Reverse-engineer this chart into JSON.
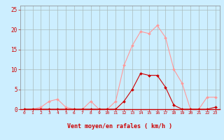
{
  "x": [
    0,
    1,
    2,
    3,
    4,
    5,
    6,
    7,
    8,
    9,
    10,
    11,
    12,
    13,
    14,
    15,
    16,
    17,
    18,
    19,
    20,
    21,
    22,
    23
  ],
  "pink_line": [
    0.0,
    0.0,
    0.5,
    2.0,
    2.5,
    0.5,
    0.0,
    0.0,
    2.0,
    0.0,
    0.0,
    2.0,
    11.0,
    16.0,
    19.5,
    19.0,
    21.0,
    18.0,
    10.0,
    6.5,
    0.0,
    0.0,
    3.0,
    3.0
  ],
  "red_line": [
    0.0,
    0.0,
    0.0,
    0.0,
    0.0,
    0.0,
    0.0,
    0.0,
    0.0,
    0.0,
    0.0,
    0.0,
    2.0,
    5.0,
    9.0,
    8.5,
    8.5,
    5.5,
    1.0,
    0.0,
    0.0,
    0.0,
    0.0,
    0.5
  ],
  "xlabel": "Vent moyen/en rafales ( km/h )",
  "ylim": [
    0,
    26
  ],
  "xlim": [
    -0.5,
    23.5
  ],
  "yticks": [
    0,
    5,
    10,
    15,
    20,
    25
  ],
  "xticks": [
    0,
    1,
    2,
    3,
    4,
    5,
    6,
    7,
    8,
    9,
    10,
    11,
    12,
    13,
    14,
    15,
    16,
    17,
    18,
    19,
    20,
    21,
    22,
    23
  ],
  "bg_color": "#cceeff",
  "grid_color": "#aabbbb",
  "pink_color": "#ff9999",
  "red_color": "#cc0000",
  "label_color": "#cc0000",
  "spine_color": "#888888"
}
